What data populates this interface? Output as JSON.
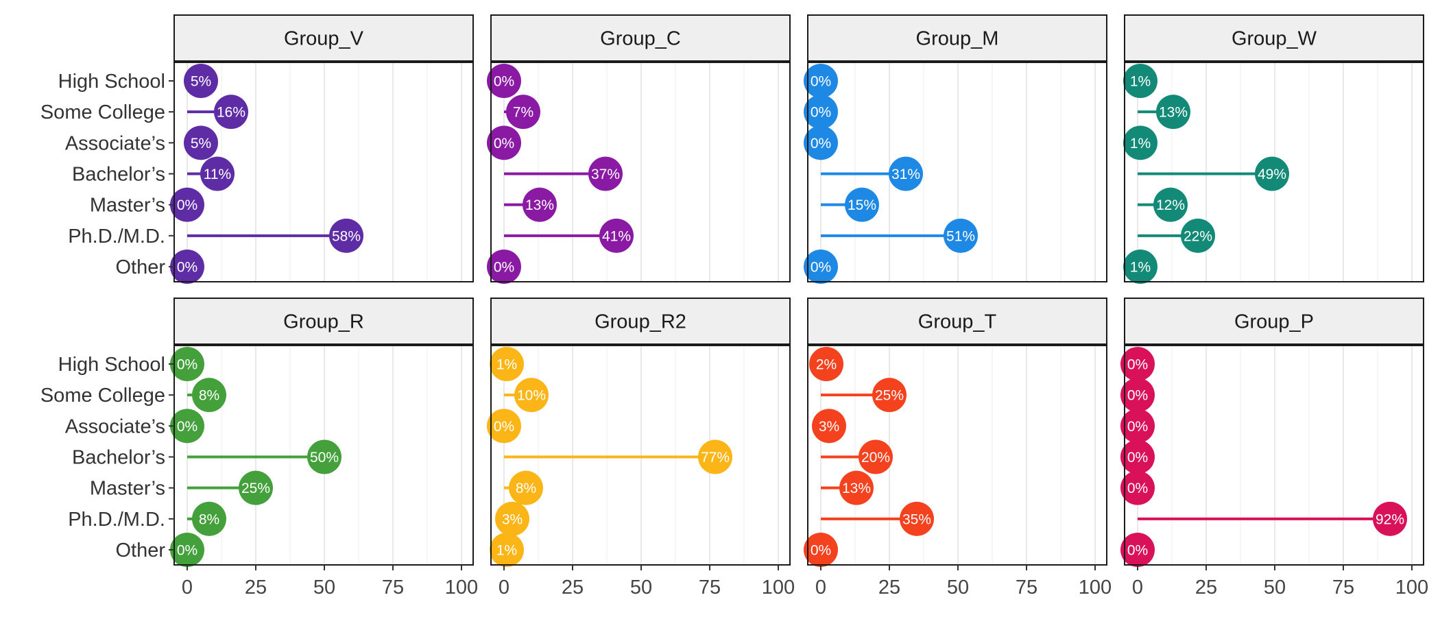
{
  "chart_data": {
    "type": "lollipop",
    "categories": [
      "High School",
      "Some College",
      "Associate’s",
      "Bachelor’s",
      "Master’s",
      "Ph.D./M.D.",
      "Other"
    ],
    "xlim": [
      0,
      100
    ],
    "x_ticks": [
      "0",
      "25",
      "50",
      "75",
      "100"
    ],
    "grid": "vertical",
    "panels": [
      {
        "name": "Group_V",
        "color": "#5E2CA5",
        "values": [
          5,
          16,
          5,
          11,
          0,
          58,
          0
        ],
        "labels": [
          "5%",
          "16%",
          "5%",
          "11%",
          "0%",
          "58%",
          "0%"
        ]
      },
      {
        "name": "Group_C",
        "color": "#8A1AA3",
        "values": [
          0,
          7,
          0,
          37,
          13,
          41,
          0
        ],
        "labels": [
          "0%",
          "7%",
          "0%",
          "37%",
          "13%",
          "41%",
          "0%"
        ]
      },
      {
        "name": "Group_M",
        "color": "#1E88E5",
        "values": [
          0,
          0,
          0,
          31,
          15,
          51,
          0
        ],
        "labels": [
          "0%",
          "0%",
          "0%",
          "31%",
          "15%",
          "51%",
          "0%"
        ]
      },
      {
        "name": "Group_W",
        "color": "#138A78",
        "values": [
          1,
          13,
          1,
          49,
          12,
          22,
          1
        ],
        "labels": [
          "1%",
          "13%",
          "1%",
          "49%",
          "12%",
          "22%",
          "1%"
        ]
      },
      {
        "name": "Group_R",
        "color": "#43A03B",
        "values": [
          0,
          8,
          0,
          50,
          25,
          8,
          0
        ],
        "labels": [
          "0%",
          "8%",
          "0%",
          "50%",
          "25%",
          "8%",
          "0%"
        ]
      },
      {
        "name": "Group_R2",
        "color": "#FBB516",
        "values": [
          1,
          10,
          0,
          77,
          8,
          3,
          1
        ],
        "labels": [
          "1%",
          "10%",
          "0%",
          "77%",
          "8%",
          "3%",
          "1%"
        ]
      },
      {
        "name": "Group_T",
        "color": "#F4411E",
        "values": [
          2,
          25,
          3,
          20,
          13,
          35,
          0
        ],
        "labels": [
          "2%",
          "25%",
          "3%",
          "20%",
          "13%",
          "35%",
          "0%"
        ]
      },
      {
        "name": "Group_P",
        "color": "#D81159",
        "values": [
          0,
          0,
          0,
          0,
          0,
          92,
          0
        ],
        "labels": [
          "0%",
          "0%",
          "0%",
          "0%",
          "0%",
          "92%",
          "0%"
        ]
      }
    ]
  }
}
